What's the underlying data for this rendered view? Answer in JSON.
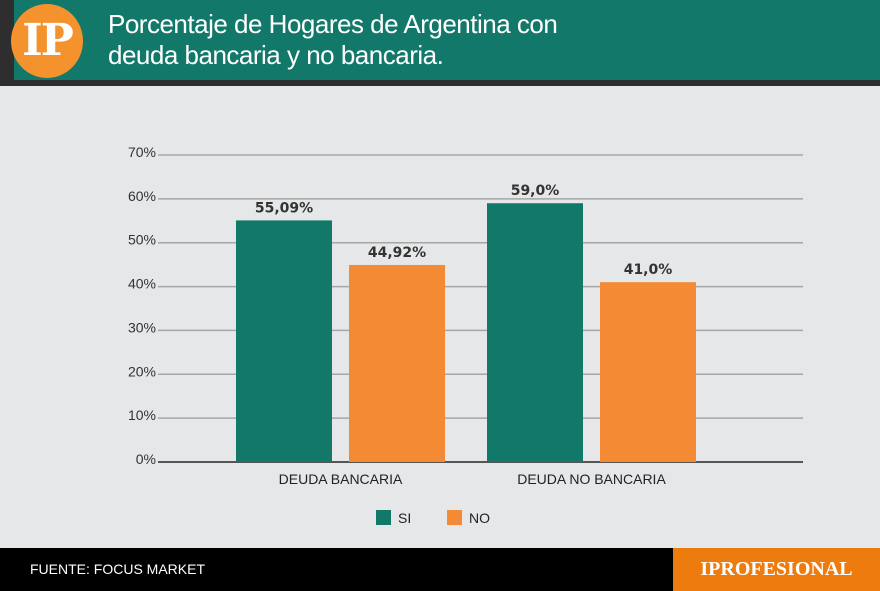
{
  "header": {
    "logo_text": "IP",
    "title_line1": "Porcentaje de Hogares de Argentina con",
    "title_line2": "deuda bancaria y no bancaria."
  },
  "footer": {
    "source": "FUENTE:  FOCUS MARKET",
    "brand": "IPROFESIONAL"
  },
  "colors": {
    "si": "#12796a",
    "no": "#f58a35",
    "header": "#12796a",
    "brand": "#ee7b0e"
  },
  "chart_data": {
    "type": "bar",
    "categories": [
      "DEUDA BANCARIA",
      "DEUDA NO BANCARIA"
    ],
    "series": [
      {
        "name": "SI",
        "values": [
          55.09,
          59.0
        ],
        "labels": [
          "55,09%",
          "59,0%"
        ]
      },
      {
        "name": "NO",
        "values": [
          44.92,
          41.0
        ],
        "labels": [
          "44,92%",
          "41,0%"
        ]
      }
    ],
    "ylim": [
      0,
      70
    ],
    "yticks": [
      "0%",
      "10%",
      "20%",
      "30%",
      "40%",
      "50%",
      "60%",
      "70%"
    ],
    "grid": true,
    "legend": "bottom"
  }
}
